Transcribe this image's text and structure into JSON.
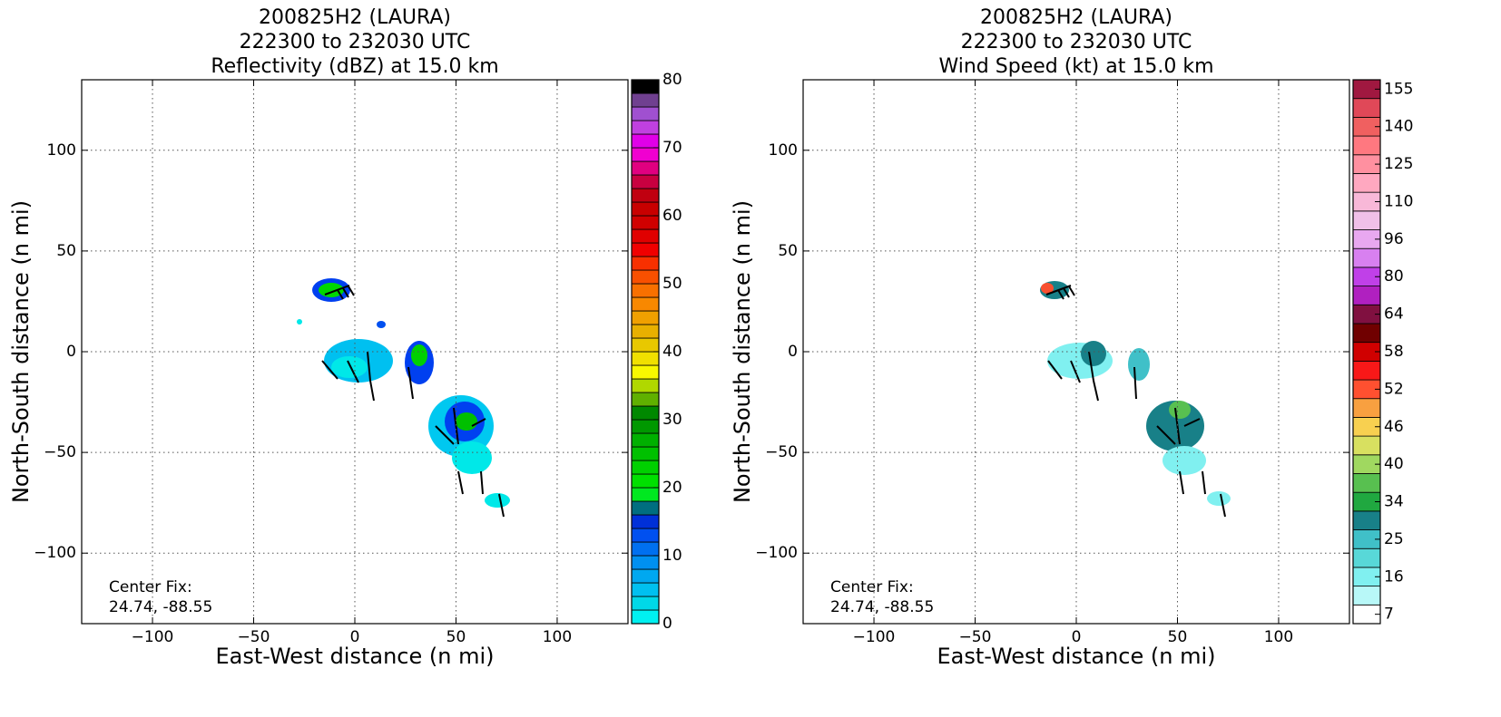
{
  "chart_data": [
    {
      "type": "heatmap",
      "title": [
        "200825H2 (LAURA)",
        "222300 to 232030 UTC",
        "Reflectivity (dBZ) at 15.0 km"
      ],
      "xlabel": "East-West distance (n mi)",
      "ylabel": "North-South distance (n mi)",
      "xlim": [
        -135,
        135
      ],
      "ylim": [
        -135,
        135
      ],
      "xticks": [
        {
          "value": -100,
          "label": "−100"
        },
        {
          "value": -50,
          "label": "−50"
        },
        0,
        50,
        100
      ],
      "yticks": [
        {
          "value": -100,
          "label": "−100"
        },
        {
          "value": -50,
          "label": "−50"
        },
        0,
        50,
        100
      ],
      "grid": true,
      "annotation": [
        "Center Fix:",
        "24.74, -88.55"
      ],
      "colorbar": {
        "range": [
          0,
          80
        ],
        "ticks": [
          0,
          10,
          20,
          30,
          40,
          50,
          60,
          70,
          80
        ],
        "colors": [
          "#00f0f0",
          "#00d8e8",
          "#00c0f0",
          "#00a8f0",
          "#0090f0",
          "#0070f0",
          "#0050f0",
          "#0030d8",
          "#006e80",
          "#00e820",
          "#00e000",
          "#00d000",
          "#00c000",
          "#00b000",
          "#009800",
          "#008800",
          "#60b000",
          "#b0d800",
          "#f8f800",
          "#f0e000",
          "#e8c800",
          "#e8b000",
          "#f0a000",
          "#f88800",
          "#f87000",
          "#f85000",
          "#f83000",
          "#f00000",
          "#e00000",
          "#d00000",
          "#c80000",
          "#c00010",
          "#c80040",
          "#e00080",
          "#f000d0",
          "#e000e8",
          "#c040e0",
          "#a050d0",
          "#704090",
          "#000000"
        ]
      }
    },
    {
      "type": "heatmap",
      "title": [
        "200825H2 (LAURA)",
        "222300 to 232030 UTC",
        "Wind Speed (kt) at 15.0 km"
      ],
      "xlabel": "East-West distance (n mi)",
      "ylabel": "North-South distance (n mi)",
      "xlim": [
        -135,
        135
      ],
      "ylim": [
        -135,
        135
      ],
      "xticks": [
        {
          "value": -100,
          "label": "−100"
        },
        {
          "value": -50,
          "label": "−50"
        },
        0,
        50,
        100
      ],
      "yticks": [
        {
          "value": -100,
          "label": "−100"
        },
        {
          "value": -50,
          "label": "−50"
        },
        0,
        50,
        100
      ],
      "grid": true,
      "annotation": [
        "Center Fix:",
        "24.74, -88.55"
      ],
      "colorbar": {
        "ticks": [
          7,
          16,
          25,
          34,
          40,
          46,
          52,
          58,
          64,
          80,
          96,
          110,
          125,
          140,
          155
        ],
        "colors": [
          "#ffffff",
          "#b8f8f8",
          "#80f0f0",
          "#58d8d8",
          "#40c0c8",
          "#188088",
          "#20a840",
          "#58c050",
          "#a0d860",
          "#d8e060",
          "#f8d050",
          "#f8a040",
          "#ff5030",
          "#f81818",
          "#d00000",
          "#700000",
          "#801040",
          "#b020c0",
          "#c040e8",
          "#d880f0",
          "#e8a8f0",
          "#f0c0e8",
          "#f8b8d8",
          "#ffa8c0",
          "#ff90a0",
          "#ff7880",
          "#f06060",
          "#e04858",
          "#a01840"
        ]
      }
    }
  ]
}
